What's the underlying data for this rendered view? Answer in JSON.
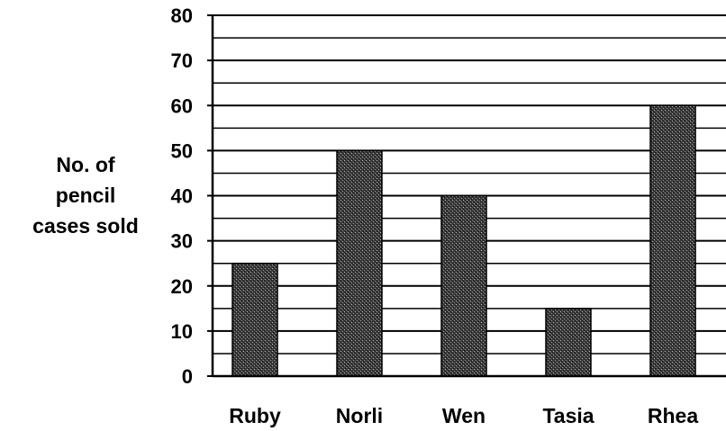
{
  "chart_data": {
    "type": "bar",
    "ylabel_lines": [
      "No. of",
      "pencil",
      "cases sold"
    ],
    "categories": [
      "Ruby",
      "Norli",
      "Wen",
      "Tasia",
      "Rhea"
    ],
    "values": [
      25,
      50,
      40,
      15,
      60
    ],
    "ylim": [
      0,
      80
    ],
    "y_ticks": [
      0,
      10,
      20,
      30,
      40,
      50,
      60,
      70,
      80
    ],
    "minor_grid_step": 5,
    "grid": true,
    "bar_pattern": "dark-stipple"
  }
}
